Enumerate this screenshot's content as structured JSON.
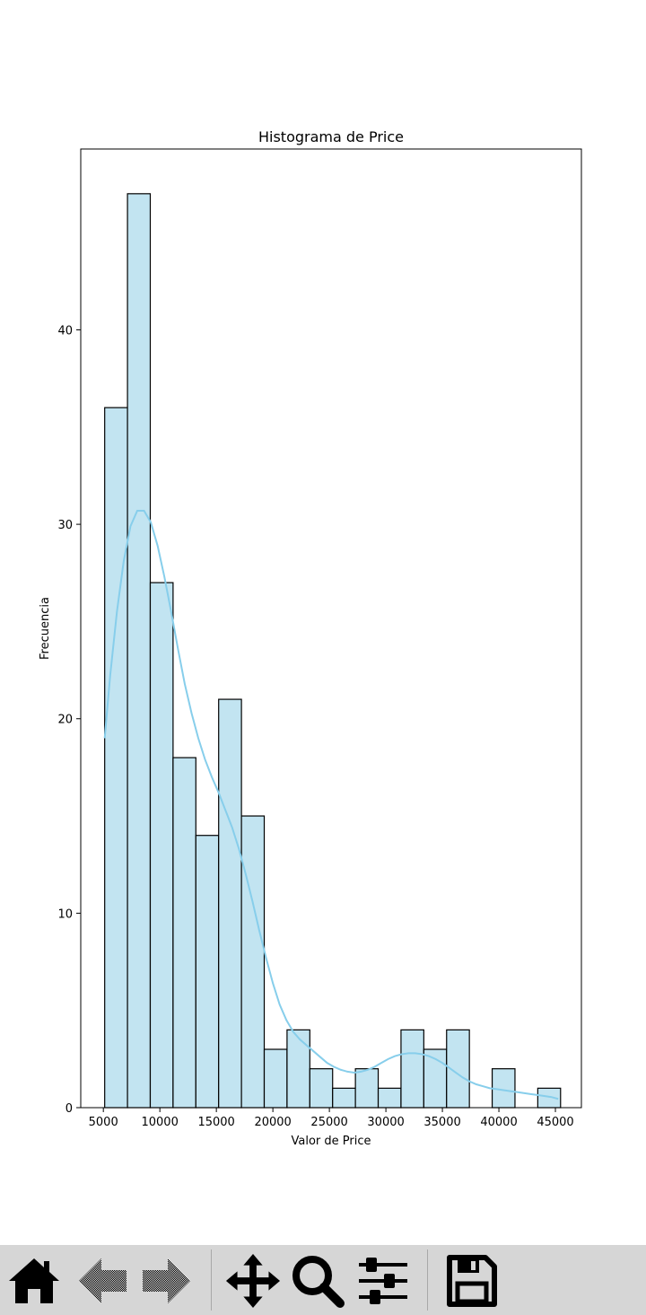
{
  "chart_data": {
    "type": "bar",
    "subtype": "histogram",
    "title": "Histograma de Price",
    "xlabel": "Valor de Price",
    "ylabel": "Frecuencia",
    "xlim": [
      3000,
      47300
    ],
    "ylim": [
      0,
      49.3
    ],
    "bin_start": 5118,
    "bin_width": 2016.9,
    "frequencies": [
      36,
      47,
      27,
      18,
      14,
      21,
      15,
      3,
      4,
      2,
      1,
      2,
      1,
      4,
      3,
      4,
      0,
      2,
      0,
      1
    ],
    "xticks": [
      5000,
      10000,
      15000,
      20000,
      25000,
      30000,
      35000,
      40000,
      45000
    ],
    "yticks": [
      0,
      10,
      20,
      30,
      40
    ],
    "kde": {
      "x": [
        5118,
        5600,
        6200,
        6800,
        7400,
        8000,
        8600,
        9200,
        9800,
        10400,
        11000,
        11600,
        12200,
        12800,
        13400,
        14000,
        14600,
        15200,
        15800,
        16400,
        17000,
        17600,
        18200,
        18800,
        19400,
        20000,
        20600,
        21200,
        21800,
        22400,
        23000,
        23600,
        24200,
        24800,
        25400,
        26000,
        26600,
        27200,
        27800,
        28400,
        29000,
        29600,
        30200,
        30800,
        31400,
        32000,
        32600,
        33200,
        33800,
        34400,
        35000,
        35600,
        36200,
        36800,
        37400,
        38000,
        38600,
        39200,
        39800,
        40400,
        41000,
        41600,
        42200,
        42800,
        43400,
        44000,
        44600,
        45252
      ],
      "y": [
        19.0,
        22.2,
        25.5,
        28.1,
        29.9,
        30.7,
        30.7,
        30.1,
        28.9,
        27.3,
        25.5,
        23.6,
        21.8,
        20.3,
        19.0,
        17.9,
        17.0,
        16.2,
        15.3,
        14.4,
        13.3,
        12.0,
        10.6,
        9.1,
        7.7,
        6.4,
        5.3,
        4.5,
        3.9,
        3.5,
        3.2,
        2.9,
        2.6,
        2.3,
        2.1,
        1.95,
        1.85,
        1.8,
        1.85,
        1.95,
        2.1,
        2.3,
        2.5,
        2.65,
        2.75,
        2.8,
        2.8,
        2.75,
        2.65,
        2.5,
        2.3,
        2.05,
        1.8,
        1.55,
        1.35,
        1.2,
        1.1,
        1.0,
        0.95,
        0.9,
        0.85,
        0.8,
        0.75,
        0.7,
        0.65,
        0.6,
        0.55,
        0.45
      ]
    },
    "colors": {
      "bar_fill": "#c2e4f1",
      "bar_edge": "#000000",
      "kde_line": "#87ceeb"
    },
    "grid": false,
    "legend": "none"
  },
  "toolbar": {
    "buttons": [
      {
        "name": "home-button",
        "icon": "home-icon"
      },
      {
        "name": "back-button",
        "icon": "arrow-left-icon"
      },
      {
        "name": "forward-button",
        "icon": "arrow-right-icon"
      },
      {
        "name": "pan-button",
        "icon": "move-icon"
      },
      {
        "name": "zoom-button",
        "icon": "magnifier-icon"
      },
      {
        "name": "configure-subplots-button",
        "icon": "sliders-icon"
      },
      {
        "name": "save-button",
        "icon": "floppy-disk-icon"
      }
    ]
  }
}
